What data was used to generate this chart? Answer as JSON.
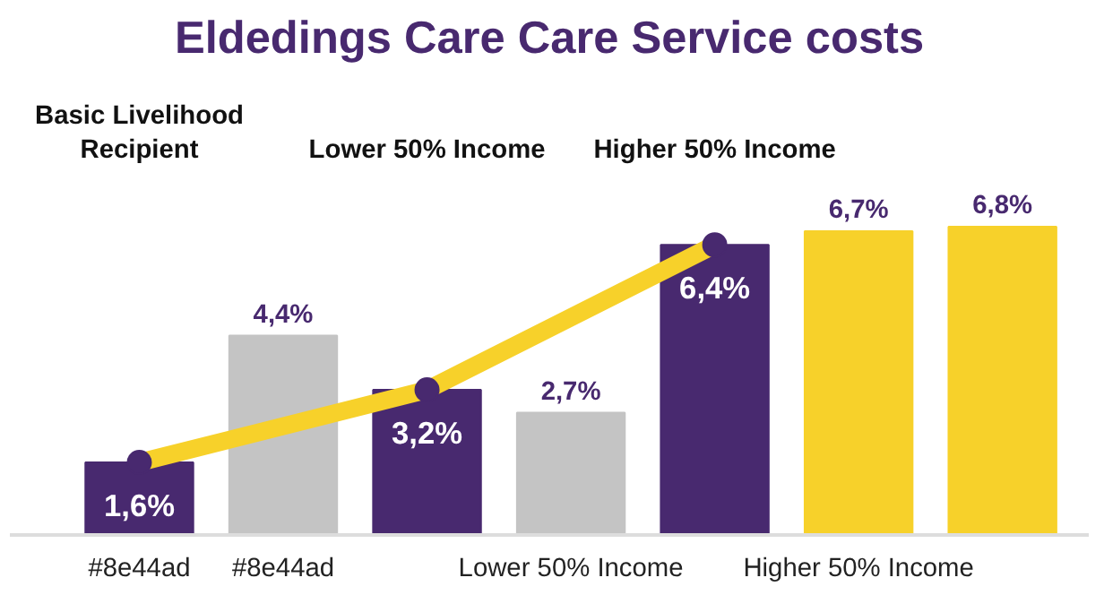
{
  "chart_data": {
    "type": "bar",
    "title": "Eldedings Care Care Service costs",
    "categories": [
      "#8e44ad",
      "#8e44ad",
      null,
      "Lower 50% Income",
      null,
      "Higher 50% Income",
      null
    ],
    "series": [
      {
        "color": "#48296f",
        "values": [
          1.6,
          null,
          3.2,
          null,
          6.4,
          null,
          null
        ],
        "value_labels": [
          "1,6%",
          null,
          "3,2%",
          null,
          "6,4%",
          null,
          null
        ]
      },
      {
        "color": "#c4c4c4",
        "values": [
          null,
          4.4,
          null,
          2.7,
          null,
          null,
          null
        ],
        "value_labels": [
          null,
          "4,4%",
          null,
          "2,7%",
          null,
          null,
          null
        ]
      },
      {
        "color": "#f7d12a",
        "values": [
          null,
          null,
          null,
          null,
          null,
          6.7,
          6.8
        ],
        "value_labels": [
          null,
          null,
          null,
          null,
          null,
          "6,7%",
          "6,8%"
        ]
      },
      {
        "type": "line",
        "color": "#f7d12a",
        "values": [
          1.6,
          null,
          3.2,
          null,
          6.4,
          null,
          null
        ],
        "marker": "circle"
      }
    ],
    "annotations": [
      "Basic Livelihood\nRecipient",
      "Lower 50% Income",
      "Higher 50% Income"
    ],
    "grid": false
  }
}
